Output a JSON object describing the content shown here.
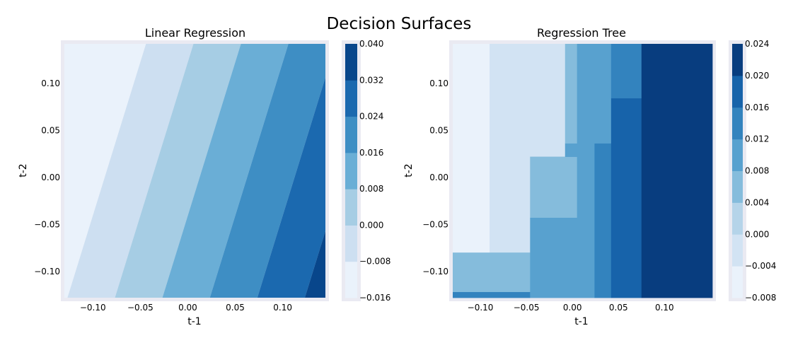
{
  "figure": {
    "suptitle": "Decision Surfaces"
  },
  "chart_data": [
    {
      "type": "heatmap",
      "title": "Linear Regression",
      "xlabel": "t-1",
      "ylabel": "t-2",
      "xlim": [
        -0.13,
        0.145
      ],
      "ylim": [
        -0.128,
        0.142
      ],
      "xticks": [
        -0.1,
        -0.05,
        0.0,
        0.05,
        0.1
      ],
      "yticks": [
        -0.1,
        -0.05,
        0.0,
        0.05,
        0.1
      ],
      "xtick_labels": [
        "−0.10",
        "−0.05",
        "0.00",
        "0.05",
        "0.10"
      ],
      "ytick_labels": [
        "−0.10",
        "−0.05",
        "0.00",
        "0.05",
        "0.10"
      ],
      "colormap": "Blues",
      "surface": "linear",
      "surface_model": {
        "intercept": 0.006,
        "coef_t1": 0.16,
        "coef_t2": -0.049
      },
      "levels": [
        -0.016,
        -0.008,
        0.0,
        0.008,
        0.016,
        0.024,
        0.032,
        0.04
      ],
      "level_colors": [
        "#eaf2fb",
        "#cddff1",
        "#a6cde4",
        "#6aaed6",
        "#3e8ec4",
        "#1b69af",
        "#08468b"
      ],
      "colorbar_ticks": [
        "0.040",
        "0.032",
        "0.024",
        "0.016",
        "0.008",
        "0.000",
        "−0.008",
        "−0.016"
      ]
    },
    {
      "type": "heatmap",
      "title": "Regression Tree",
      "xlabel": "t-1",
      "ylabel": "t-2",
      "xlim": [
        -0.13,
        0.152
      ],
      "ylim": [
        -0.128,
        0.142
      ],
      "xticks": [
        -0.1,
        -0.05,
        0.0,
        0.05,
        0.1
      ],
      "yticks": [
        -0.1,
        -0.05,
        0.0,
        0.05,
        0.1
      ],
      "xtick_labels": [
        "−0.10",
        "−0.05",
        "0.00",
        "0.05",
        "0.10"
      ],
      "ytick_labels": [
        "−0.10",
        "−0.05",
        "0.00",
        "0.05",
        "0.10"
      ],
      "colormap": "Blues",
      "surface": "regions",
      "levels": [
        -0.008,
        -0.004,
        0.0,
        0.004,
        0.008,
        0.012,
        0.016,
        0.02,
        0.024
      ],
      "level_colors": [
        "#eaf2fb",
        "#d2e3f3",
        "#b5d4e9",
        "#85bcdc",
        "#58a1cf",
        "#3383be",
        "#1763aa",
        "#083d7f"
      ],
      "regions": [
        {
          "x0": -0.13,
          "x1": -0.09,
          "y0": -0.08,
          "y1": 0.142,
          "level": 0
        },
        {
          "x0": -0.09,
          "x1": -0.008,
          "y0": 0.022,
          "y1": 0.142,
          "level": 1
        },
        {
          "x0": -0.09,
          "x1": -0.046,
          "y0": -0.08,
          "y1": 0.022,
          "level": 1
        },
        {
          "x0": -0.13,
          "x1": -0.046,
          "y0": -0.122,
          "y1": -0.08,
          "level": 3
        },
        {
          "x0": -0.13,
          "x1": -0.046,
          "y0": -0.128,
          "y1": -0.122,
          "level": 5
        },
        {
          "x0": -0.046,
          "x1": 0.005,
          "y0": -0.043,
          "y1": 0.022,
          "level": 3
        },
        {
          "x0": -0.046,
          "x1": 0.024,
          "y0": -0.128,
          "y1": -0.043,
          "level": 4
        },
        {
          "x0": -0.008,
          "x1": 0.005,
          "y0": 0.036,
          "y1": 0.142,
          "level": 3
        },
        {
          "x0": -0.008,
          "x1": 0.005,
          "y0": 0.022,
          "y1": 0.036,
          "level": 4
        },
        {
          "x0": 0.005,
          "x1": 0.024,
          "y0": -0.043,
          "y1": 0.142,
          "level": 4
        },
        {
          "x0": 0.024,
          "x1": 0.042,
          "y0": 0.036,
          "y1": 0.142,
          "level": 4
        },
        {
          "x0": 0.024,
          "x1": 0.042,
          "y0": -0.128,
          "y1": 0.036,
          "level": 5
        },
        {
          "x0": 0.042,
          "x1": 0.075,
          "y0": 0.084,
          "y1": 0.142,
          "level": 5
        },
        {
          "x0": 0.042,
          "x1": 0.075,
          "y0": -0.128,
          "y1": 0.084,
          "level": 6
        },
        {
          "x0": 0.075,
          "x1": 0.152,
          "y0": -0.128,
          "y1": 0.142,
          "level": 7
        }
      ],
      "colorbar_ticks": [
        "0.024",
        "0.020",
        "0.016",
        "0.012",
        "0.008",
        "0.004",
        "0.000",
        "−0.004",
        "−0.008"
      ]
    }
  ]
}
